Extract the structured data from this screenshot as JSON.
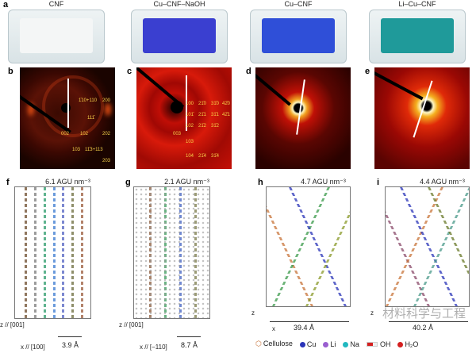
{
  "panels": {
    "a": {
      "label": "a",
      "photos": [
        {
          "title": "CNF",
          "color": "#f4f6f6"
        },
        {
          "title": "Cu–CNF–NaOH",
          "color": "#3a3fd0"
        },
        {
          "title": "Cu–CNF",
          "color": "#2f4fd8"
        },
        {
          "title": "Li–Cu–CNF",
          "color": "#1f9a9a"
        }
      ]
    },
    "b": {
      "label": "b",
      "hkl": [
        "1̄10+110",
        "200",
        "111̄",
        "002",
        "102",
        "202",
        "103",
        "11̄3+113",
        "203"
      ]
    },
    "c": {
      "label": "c",
      "hkl": [
        "100",
        "21̄0",
        "31̄0",
        "42̄0",
        "101̄",
        "21̄1",
        "31̄1",
        "42̄1",
        "102",
        "21̄2",
        "31̄2",
        "003",
        "103",
        "104",
        "21̄4",
        "31̄4"
      ]
    },
    "d": {
      "label": "d"
    },
    "e": {
      "label": "e"
    },
    "f": {
      "label": "f",
      "title": "6.1 AGU nm⁻³",
      "z_axis": "z // [001]",
      "x_axis": "x // [100]",
      "scale": "3.9 Å"
    },
    "g": {
      "label": "g",
      "title": "2.1 AGU nm⁻³",
      "z_axis": "z // [001]",
      "x_axis": "x // [−110]",
      "scale": "8.7 Å"
    },
    "h": {
      "label": "h",
      "title": "4.7 AGU nm⁻³",
      "z_axis": "z",
      "x_axis": "x",
      "scale": "39.4 Å"
    },
    "i": {
      "label": "i",
      "title": "4.4 AGU nm⁻³",
      "z_axis": "z",
      "scale": "40.2 Å"
    }
  },
  "legend": [
    {
      "label": "Cellulose",
      "icon": "cellulose-icon",
      "color": "#c8743a"
    },
    {
      "label": "Cu",
      "icon": "cu-atom-icon",
      "color": "#2a34b8"
    },
    {
      "label": "Li",
      "icon": "li-atom-icon",
      "color": "#9a5fd0"
    },
    {
      "label": "Na",
      "icon": "na-atom-icon",
      "color": "#22b8c0"
    },
    {
      "label": "OH",
      "icon": "oh-icon",
      "color": "#d42020"
    },
    {
      "label": "H₂O",
      "icon": "water-icon",
      "color": "#d42020"
    }
  ],
  "watermark": "材料科学与工程"
}
